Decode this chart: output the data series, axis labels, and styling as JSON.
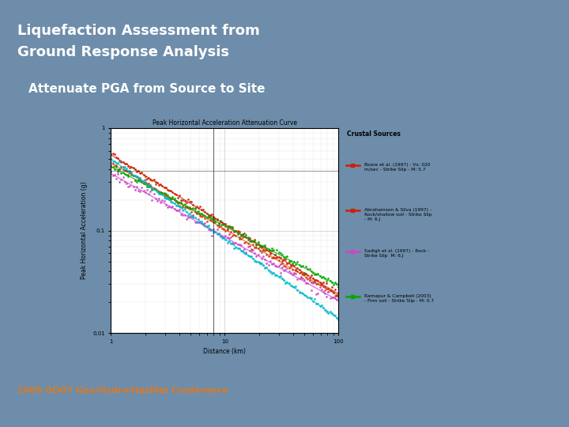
{
  "title_line1": "Liquefaction Assessment from",
  "title_line2": "Ground Response Analysis",
  "subtitle": "Attenuate PGA from Source to Site",
  "footer": "2009 ODOT Geo/Hydro/HazMat Conference",
  "bg_color": "#6d8daa",
  "title_color": "#ffffff",
  "subtitle_color": "#ffffff",
  "footer_color": "#e07820",
  "sep_color1": "#8b1a1a",
  "sep_color2": "#5a0a0a",
  "chart_title": "Peak Horizontal Acceleration Attenuation Curve",
  "chart_legend_title": "Crustal Sources",
  "xlabel": "Distance (km)",
  "ylabel": "Peak Horizontal Acceleration (g)",
  "line_colors": [
    "#cc2200",
    "#cc2200",
    "#cc44cc",
    "#00aa00",
    "#00cccc"
  ],
  "legend_colors": [
    "#cc2200",
    "#cc2200",
    "#cc44cc",
    "#00aa00"
  ],
  "legend_texts": [
    "Boore et al. (1997) - Vs: 020\nm/sec - Strike Slip - M: 5.7",
    "Abrahamson & Silva (1997) -\nRock/shallow soil - Strike Slip\n- M: 6.J",
    "Sadigh et al. (1997) - Rock -\nStrike Slip  M: 6.J",
    "Ramapur & Campbell (2003)\n- Firm soil - Strike Slip - M: 0.7"
  ],
  "title_fontsize": 13,
  "subtitle_fontsize": 11,
  "footer_fontsize": 8
}
